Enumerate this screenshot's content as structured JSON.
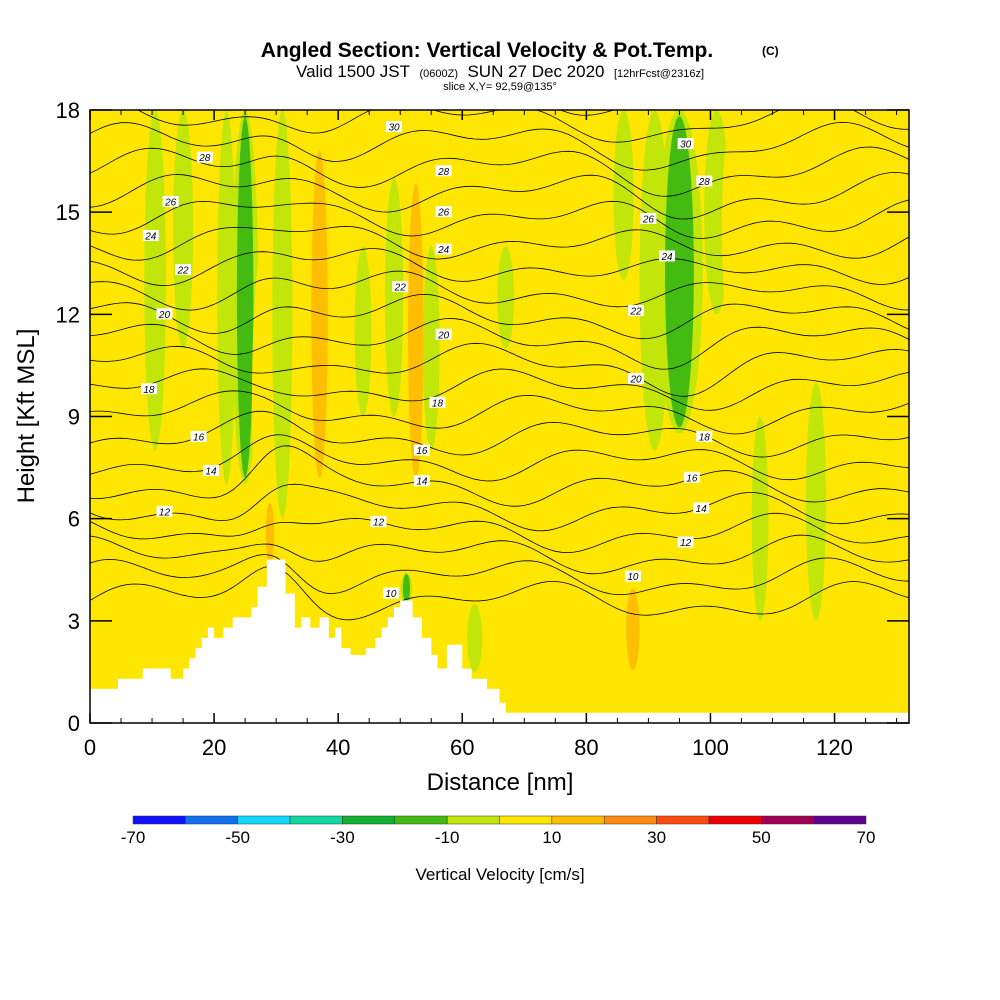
{
  "header": {
    "title": "Angled Section: Vertical Velocity & Pot.Temp.",
    "title_mark": "(C)",
    "valid_prefix": "Valid 1500 JST",
    "valid_utc": "(0600Z)",
    "valid_date": "SUN 27 Dec 2020",
    "forecast": "[12hrFcst@2316z]",
    "slice": "slice X,Y= 92,59@135°"
  },
  "colors": {
    "background": "#ffffff",
    "terrain": "#ffffff",
    "contour_line": "#000000",
    "palette": [
      "#1010ff",
      "#1070f0",
      "#10d8ff",
      "#10d8a0",
      "#10b030",
      "#44bb10",
      "#c2e60a",
      "#ffe600",
      "#ffbe00",
      "#ff8c10",
      "#ff4a10",
      "#ee0000",
      "#a00050",
      "#600090"
    ]
  },
  "chart_data": {
    "type": "heatmap",
    "title": "Angled Section: Vertical Velocity & Pot.Temp.",
    "xlabel": "Distance [nm]",
    "ylabel": "Height [Kft MSL]",
    "xlim": [
      0,
      132
    ],
    "ylim": [
      0,
      18
    ],
    "xticks": [
      "0",
      "20",
      "40",
      "60",
      "80",
      "100",
      "120"
    ],
    "yticks": [
      "0",
      "3",
      "6",
      "9",
      "12",
      "15",
      "18"
    ],
    "xtick_values": [
      0,
      20,
      40,
      60,
      80,
      100,
      120
    ],
    "ytick_values": [
      0,
      3,
      6,
      9,
      12,
      15,
      18
    ],
    "colorbar": {
      "label": "Vertical Velocity [cm/s]",
      "levels": [
        -70,
        -60,
        -50,
        -40,
        -30,
        -20,
        -10,
        0,
        10,
        20,
        30,
        40,
        50,
        60,
        70
      ],
      "tick_labels": [
        "-70",
        "-50",
        "-30",
        "-10",
        "10",
        "30",
        "50",
        "70"
      ],
      "tick_values": [
        -70,
        -50,
        -30,
        -10,
        10,
        30,
        50,
        70
      ]
    },
    "velocity_bands": [
      {
        "x": 6.5,
        "y0": 10.5,
        "y1": 18,
        "width": 1.5,
        "value": 15
      },
      {
        "x": 10.5,
        "y0": 8,
        "y1": 18,
        "width": 1.3,
        "value": -18
      },
      {
        "x": 15,
        "y0": 11,
        "y1": 18,
        "width": 1.2,
        "value": -12
      },
      {
        "x": 19,
        "y0": 8,
        "y1": 18,
        "width": 1.3,
        "value": 12
      },
      {
        "x": 22,
        "y0": 7,
        "y1": 18,
        "width": 1.1,
        "value": -12
      },
      {
        "x": 25,
        "y0": 7,
        "y1": 18,
        "width": 1.6,
        "value": -22
      },
      {
        "x": 28,
        "y0": 5,
        "y1": 14,
        "width": 1.4,
        "value": 14
      },
      {
        "x": 29,
        "y0": 4.6,
        "y1": 6.5,
        "width": 0.8,
        "value": 26
      },
      {
        "x": 31,
        "y0": 6,
        "y1": 18,
        "width": 1.2,
        "value": -18
      },
      {
        "x": 37,
        "y0": 7,
        "y1": 17,
        "width": 1.6,
        "value": 22
      },
      {
        "x": 44,
        "y0": 9,
        "y1": 14,
        "width": 1.0,
        "value": -12
      },
      {
        "x": 49,
        "y0": 9,
        "y1": 16,
        "width": 1.1,
        "value": -12
      },
      {
        "x": 52.5,
        "y0": 7,
        "y1": 16,
        "width": 1.5,
        "value": 24
      },
      {
        "x": 51,
        "y0": 3.5,
        "y1": 4.4,
        "width": 0.7,
        "value": -22
      },
      {
        "x": 55,
        "y0": 8,
        "y1": 14,
        "width": 1.0,
        "value": -12
      },
      {
        "x": 62,
        "y0": 1.5,
        "y1": 3.5,
        "width": 0.9,
        "value": -18
      },
      {
        "x": 67,
        "y0": 11,
        "y1": 14,
        "width": 1.0,
        "value": -12
      },
      {
        "x": 72.5,
        "y0": 13,
        "y1": 17.5,
        "width": 1.2,
        "value": 12
      },
      {
        "x": 80,
        "y0": 14,
        "y1": 18,
        "width": 1.3,
        "value": 14
      },
      {
        "x": 86,
        "y0": 13,
        "y1": 18,
        "width": 1.2,
        "value": -12
      },
      {
        "x": 87.5,
        "y0": 1.5,
        "y1": 4,
        "width": 1.3,
        "value": 24
      },
      {
        "x": 91,
        "y0": 8,
        "y1": 18,
        "width": 1.8,
        "value": -12
      },
      {
        "x": 95,
        "y0": 8.5,
        "y1": 18,
        "width": 2.8,
        "value": -26
      },
      {
        "x": 101,
        "y0": 12,
        "y1": 18,
        "width": 1.5,
        "value": -12
      },
      {
        "x": 104,
        "y0": 11,
        "y1": 18,
        "width": 1.6,
        "value": 12
      },
      {
        "x": 108,
        "y0": 3,
        "y1": 9,
        "width": 1.0,
        "value": -12
      },
      {
        "x": 117,
        "y0": 3,
        "y1": 10,
        "width": 1.2,
        "value": -12
      },
      {
        "x": 118,
        "y0": 12,
        "y1": 17.5,
        "width": 1.3,
        "value": 12
      },
      {
        "x": 126,
        "y0": 12,
        "y1": 17,
        "width": 1.2,
        "value": 12
      },
      {
        "x": 76,
        "y0": 0.5,
        "y1": 2.5,
        "width": 1.0,
        "value": 14
      },
      {
        "x": 98,
        "y0": 0.5,
        "y1": 3,
        "width": 1.0,
        "value": 14
      }
    ],
    "theta_contours": {
      "levels": [
        10,
        11,
        12,
        13,
        14,
        15,
        16,
        17,
        18,
        19,
        20,
        21,
        22,
        23,
        24,
        25,
        26,
        27,
        28,
        29,
        30,
        31
      ],
      "labels": [
        {
          "text": "12",
          "x": 12,
          "y": 6.2
        },
        {
          "text": "14",
          "x": 19.5,
          "y": 7.4
        },
        {
          "text": "16",
          "x": 17.5,
          "y": 8.4
        },
        {
          "text": "18",
          "x": 9.5,
          "y": 9.8
        },
        {
          "text": "20",
          "x": 12,
          "y": 12
        },
        {
          "text": "22",
          "x": 15,
          "y": 13.3
        },
        {
          "text": "24",
          "x": 9.8,
          "y": 14.3
        },
        {
          "text": "26",
          "x": 13,
          "y": 15.3
        },
        {
          "text": "28",
          "x": 18.5,
          "y": 16.6
        },
        {
          "text": "30",
          "x": 49,
          "y": 17.5
        },
        {
          "text": "28",
          "x": 57,
          "y": 16.2
        },
        {
          "text": "26",
          "x": 57,
          "y": 15.0
        },
        {
          "text": "24",
          "x": 57,
          "y": 13.9
        },
        {
          "text": "22",
          "x": 50,
          "y": 12.8
        },
        {
          "text": "20",
          "x": 57,
          "y": 11.4
        },
        {
          "text": "18",
          "x": 56,
          "y": 9.4
        },
        {
          "text": "16",
          "x": 53.5,
          "y": 8
        },
        {
          "text": "14",
          "x": 53.5,
          "y": 7.1
        },
        {
          "text": "12",
          "x": 46.5,
          "y": 5.9
        },
        {
          "text": "10",
          "x": 48.5,
          "y": 3.8
        },
        {
          "text": "30",
          "x": 96,
          "y": 17
        },
        {
          "text": "28",
          "x": 99,
          "y": 15.9
        },
        {
          "text": "26",
          "x": 90,
          "y": 14.8
        },
        {
          "text": "24",
          "x": 93,
          "y": 13.7
        },
        {
          "text": "22",
          "x": 88,
          "y": 12.1
        },
        {
          "text": "20",
          "x": 88,
          "y": 10.1
        },
        {
          "text": "18",
          "x": 99,
          "y": 8.4
        },
        {
          "text": "16",
          "x": 97,
          "y": 7.2
        },
        {
          "text": "14",
          "x": 98.5,
          "y": 6.3
        },
        {
          "text": "12",
          "x": 96,
          "y": 5.3
        },
        {
          "text": "10",
          "x": 87.5,
          "y": 4.3
        }
      ]
    },
    "terrain_profile": {
      "x": [
        0,
        4.5,
        4.5,
        8.5,
        8.5,
        13,
        13,
        15,
        15,
        16,
        16,
        17,
        17,
        18,
        18,
        19,
        19,
        20,
        20,
        21.5,
        21.5,
        23,
        23,
        26,
        26,
        27,
        27,
        28.5,
        28.5,
        31.5,
        31.5,
        33,
        33,
        34,
        34,
        35.5,
        35.5,
        37,
        37,
        38.5,
        38.5,
        39.5,
        39.5,
        40.5,
        40.5,
        42,
        42,
        44.5,
        44.5,
        46,
        46,
        47,
        47,
        48,
        48,
        49,
        49,
        50,
        50,
        52,
        52,
        53.5,
        53.5,
        55,
        55,
        56,
        56,
        57.5,
        57.5,
        60,
        60,
        61.5,
        61.5,
        64,
        64,
        66,
        66,
        67,
        67,
        71,
        71,
        132
      ],
      "y": [
        1,
        1,
        1.3,
        1.3,
        1.6,
        1.6,
        1.3,
        1.3,
        1.6,
        1.6,
        1.9,
        1.9,
        2.2,
        2.2,
        2.5,
        2.5,
        2.8,
        2.8,
        2.5,
        2.5,
        2.8,
        2.8,
        3.1,
        3.1,
        3.4,
        3.4,
        4.0,
        4.0,
        4.8,
        4.8,
        3.8,
        3.8,
        2.8,
        2.8,
        3.1,
        3.1,
        2.8,
        2.8,
        3.1,
        3.1,
        2.5,
        2.5,
        2.8,
        2.8,
        2.2,
        2.2,
        2.0,
        2.0,
        2.2,
        2.2,
        2.5,
        2.5,
        2.8,
        2.8,
        3.1,
        3.1,
        3.4,
        3.4,
        3.6,
        3.6,
        3.1,
        3.1,
        2.5,
        2.5,
        2.0,
        2.0,
        1.6,
        1.6,
        2.3,
        2.3,
        1.6,
        1.6,
        1.3,
        1.3,
        1.0,
        1.0,
        0.6,
        0.6,
        0.3,
        0.3,
        0.3,
        0.3
      ]
    }
  }
}
